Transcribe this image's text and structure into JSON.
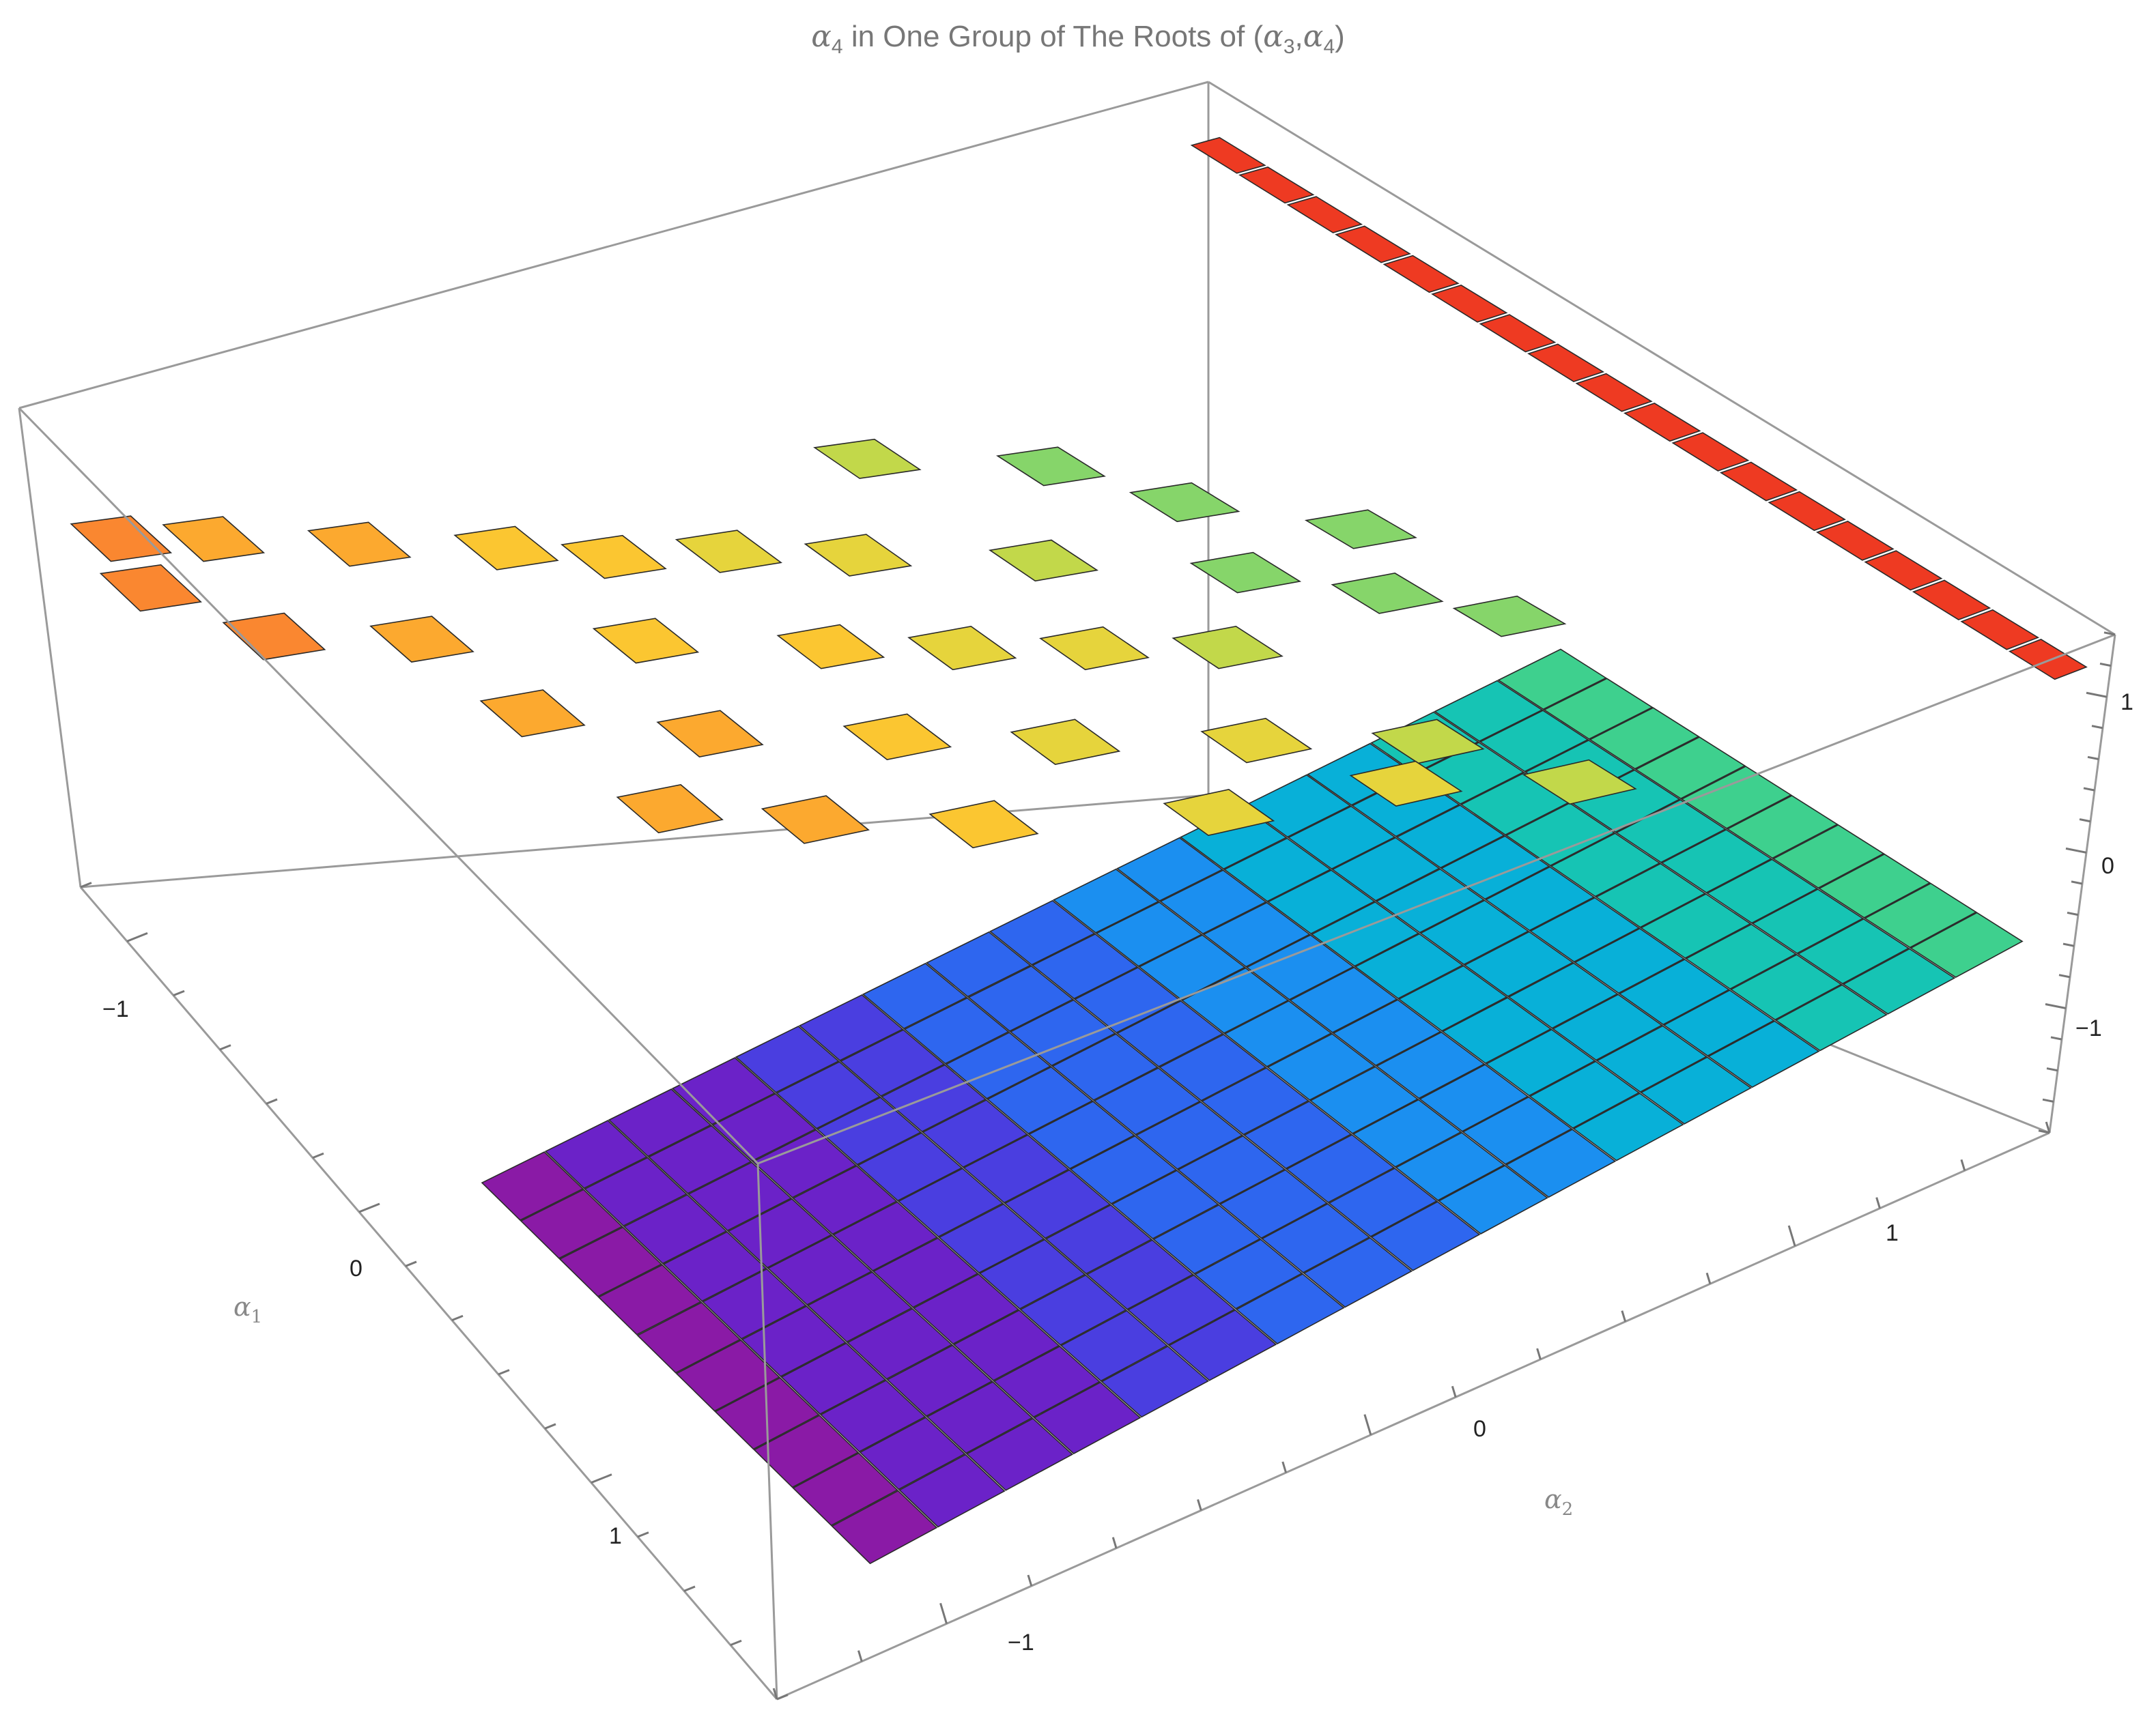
{
  "chart_data": {
    "type": "surface-3d",
    "title": {
      "prefix": "α",
      "prefix_sub": "4",
      "middle": " in One Group of The Roots of (",
      "var1": "α",
      "var1_sub": "3",
      "comma": ",",
      "var2": "α",
      "var2_sub": "4",
      "suffix": ")"
    },
    "x_axis": {
      "name": "α",
      "sub": "1",
      "ticks": [
        -1,
        0,
        1
      ],
      "range": [
        -1.5,
        1.5
      ]
    },
    "y_axis": {
      "name": "α",
      "sub": "2",
      "ticks": [
        -1,
        0,
        1
      ],
      "range": [
        -1.5,
        1.5
      ]
    },
    "z_axis": {
      "name": "",
      "ticks": [
        -1,
        0,
        1
      ],
      "range": [
        -1.6,
        1.6
      ]
    },
    "tick_labels": {
      "minus_one": "−1",
      "zero": "0",
      "one": "1"
    },
    "grid": false,
    "boxed": true,
    "colormap": "rainbow (purple low → red high)",
    "colors": [
      "#8a1aa6",
      "#6b22c8",
      "#4a3ee0",
      "#2e66ef",
      "#1b8ff0",
      "#08b0d8",
      "#16c4b4",
      "#3ed08e",
      "#86d56a",
      "#c2d84a",
      "#e6d43c",
      "#fbc631",
      "#fca92f",
      "#fa8730",
      "#f45d28",
      "#ee3a22"
    ],
    "regions": [
      {
        "name": "main-sheet",
        "description_z": "linear in α2 from about -1.2 to about -0.1, constant along α1"
      },
      {
        "name": "upper-sheet",
        "description_z": "values between about 0 and 1.2, scattered fragments"
      },
      {
        "name": "top-ridge",
        "description_z": "about 1.3 along the back edge"
      }
    ]
  }
}
